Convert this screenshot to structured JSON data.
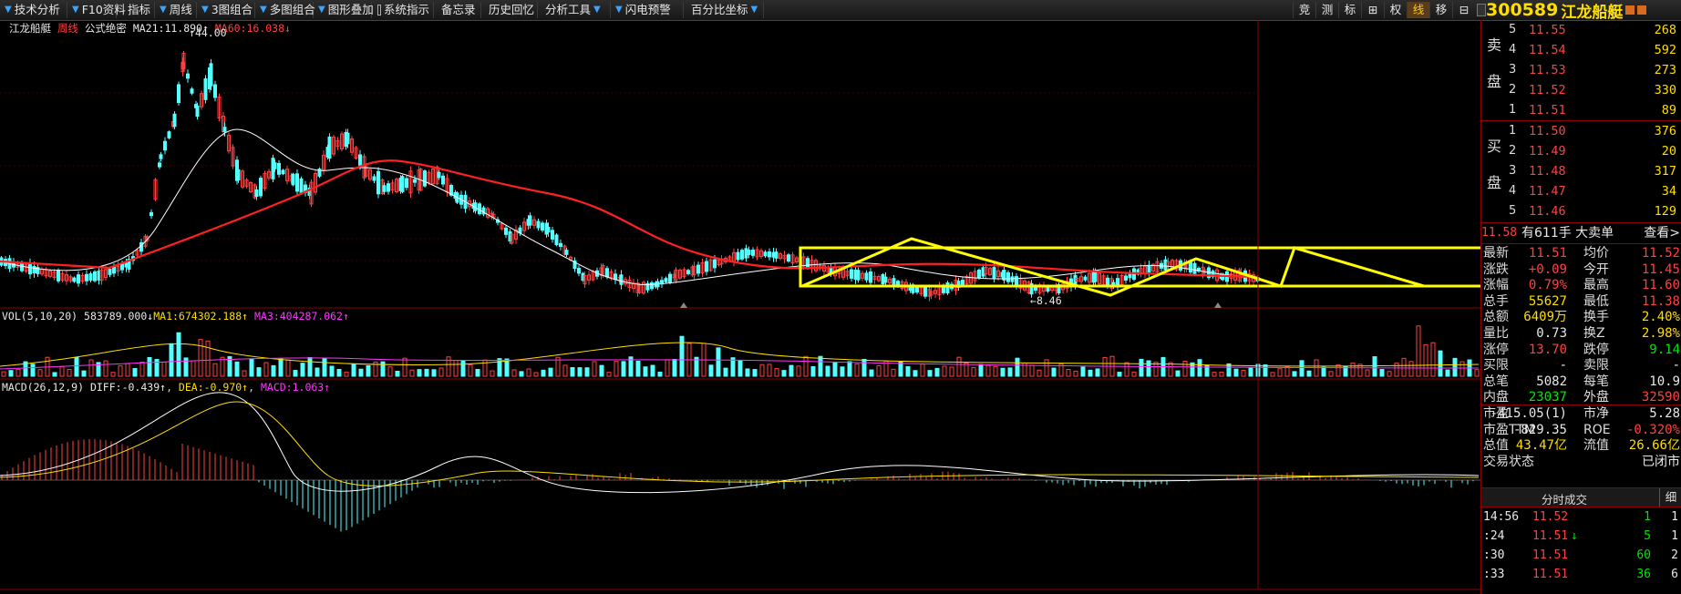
{
  "toolbar": {
    "items": [
      "技术分析",
      "F10资料",
      "指标",
      "周线",
      "3图组合",
      "多图组合",
      "图形叠加",
      "系统指示",
      "备忘录",
      "历史回忆",
      "分析工具",
      "闪电预警",
      "百分比坐标"
    ],
    "right_buttons": [
      "竞",
      "测",
      "标",
      "⊞",
      "权",
      "线",
      "移",
      "⊟"
    ]
  },
  "quote": {
    "code": "300589",
    "name": "江龙船艇"
  },
  "main_chart": {
    "info": {
      "stock": "江龙船艇",
      "period": "周线",
      "formula": "公式绝密",
      "ma21_label": "MA21:",
      "ma21": "11.890",
      "ma60_label": "MA60:",
      "ma60": "16.038"
    },
    "high_label": "44.00",
    "low_label": "8.46"
  },
  "volume_chart": {
    "info": {
      "name": "VOL(5,10,20)",
      "vol": "583789.000",
      "ma1_label": "MA1:",
      "ma1": "674302.188",
      "ma3_label": "MA3:",
      "ma3": "404287.062"
    }
  },
  "macd_chart": {
    "info": {
      "name": "MACD(26,12,9)",
      "diff_label": "DIFF:",
      "diff": "-0.439",
      "dea_label": "DEA:",
      "dea": "-0.970",
      "macd_label": "MACD:",
      "macd": "1.063"
    }
  },
  "order_book": {
    "sell_label": [
      "卖",
      "盘"
    ],
    "buy_label": [
      "买",
      "盘"
    ],
    "sell": [
      {
        "idx": "5",
        "price": "11.55",
        "vol": "268"
      },
      {
        "idx": "4",
        "price": "11.54",
        "vol": "592"
      },
      {
        "idx": "3",
        "price": "11.53",
        "vol": "273"
      },
      {
        "idx": "2",
        "price": "11.52",
        "vol": "330"
      },
      {
        "idx": "1",
        "price": "11.51",
        "vol": "89"
      }
    ],
    "buy": [
      {
        "idx": "1",
        "price": "11.50",
        "vol": "376"
      },
      {
        "idx": "2",
        "price": "11.49",
        "vol": "20"
      },
      {
        "idx": "3",
        "price": "11.48",
        "vol": "317"
      },
      {
        "idx": "4",
        "price": "11.47",
        "vol": "34"
      },
      {
        "idx": "5",
        "price": "11.46",
        "vol": "129"
      }
    ]
  },
  "big_order": {
    "price": "11.58",
    "text": "有611手 大卖单",
    "button": "查看>"
  },
  "stats": [
    {
      "l": "最新",
      "v": "11.51",
      "vc": "red",
      "l2": "均价",
      "v2": "11.52",
      "v2c": "red"
    },
    {
      "l": "涨跌",
      "v": "+0.09",
      "vc": "red",
      "l2": "今开",
      "v2": "11.45",
      "v2c": "red"
    },
    {
      "l": "涨幅",
      "v": "0.79%",
      "vc": "red",
      "l2": "最高",
      "v2": "11.60",
      "v2c": "red"
    },
    {
      "l": "总手",
      "v": "55627",
      "vc": "yellow",
      "l2": "最低",
      "v2": "11.38",
      "v2c": "red"
    },
    {
      "l": "总额",
      "v": "6409万",
      "vc": "yellow",
      "l2": "换手",
      "v2": "2.40%",
      "v2c": "yellow"
    },
    {
      "l": "量比",
      "v": "0.73",
      "vc": "white",
      "l2": "换Z",
      "v2": "2.98%",
      "v2c": "yellow"
    },
    {
      "l": "涨停",
      "v": "13.70",
      "vc": "red",
      "l2": "跌停",
      "v2": "9.14",
      "v2c": "green"
    },
    {
      "l": "买限",
      "v": "-",
      "vc": "white",
      "l2": "卖限",
      "v2": "-",
      "v2c": "white"
    },
    {
      "l": "总笔",
      "v": "5082",
      "vc": "white",
      "l2": "每笔",
      "v2": "10.9",
      "v2c": "white"
    },
    {
      "l": "内盘",
      "v": "23037",
      "vc": "green",
      "l2": "外盘",
      "v2": "32590",
      "v2c": "red"
    },
    {
      "l": "市盈",
      "v": "-415.05(1)",
      "vc": "white",
      "l2": "市净",
      "v2": "5.28",
      "v2c": "white"
    },
    {
      "l": "市盈TTM",
      "v": "-829.35",
      "vc": "white",
      "l2": "ROE",
      "v2": "-0.320%",
      "v2c": "red"
    },
    {
      "l": "总值",
      "v": "43.47亿",
      "vc": "yellow",
      "l2": "流值",
      "v2": "26.66亿",
      "v2c": "yellow"
    },
    {
      "l": "交易状态",
      "v": "",
      "vc": "white",
      "l2": "",
      "v2": "已闭市",
      "v2c": "white"
    }
  ],
  "ticks_header": {
    "title": "分时成交",
    "tab": "细"
  },
  "ticks": [
    {
      "t": "14:56",
      "p": "11.52",
      "arrow": "",
      "v": "1",
      "n": "1"
    },
    {
      "t": ":24",
      "p": "11.51",
      "arrow": "↓",
      "v": "5",
      "n": "1"
    },
    {
      "t": ":30",
      "p": "11.51",
      "arrow": "",
      "v": "60",
      "n": "2"
    },
    {
      "t": ":33",
      "p": "11.51",
      "arrow": "",
      "v": "36",
      "n": "6"
    }
  ],
  "colors": {
    "up": "#ff4040",
    "down": "#54ffff",
    "ma21": "#ffffff",
    "ma60": "#ff2020",
    "box": "#ffff00",
    "grid": "#8b0000"
  }
}
